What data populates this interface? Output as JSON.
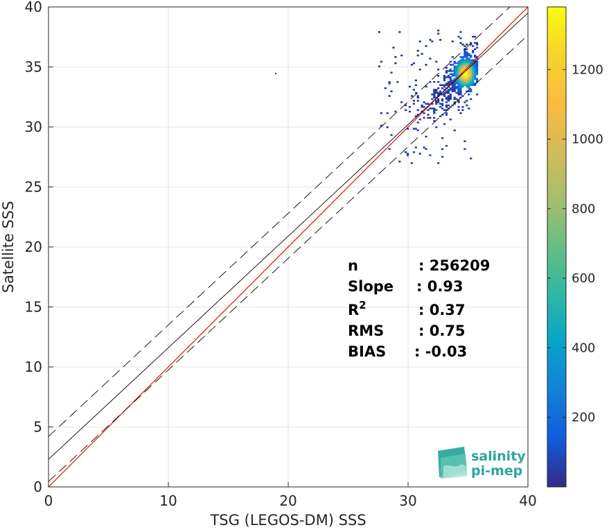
{
  "chart_data": {
    "type": "heatmap",
    "title": "",
    "xlabel": "TSG (LEGOS-DM) SSS",
    "ylabel": "Satellite SSS",
    "xlim": [
      0,
      40
    ],
    "ylim": [
      0,
      40
    ],
    "xticks": [
      "0",
      "10",
      "20",
      "30",
      "40"
    ],
    "yticks": [
      "0",
      "5",
      "10",
      "15",
      "20",
      "25",
      "30",
      "35",
      "40"
    ],
    "grid": true,
    "colorbar": {
      "range": [
        0,
        1380
      ],
      "ticks": [
        "200",
        "400",
        "600",
        "800",
        "1000",
        "1200"
      ],
      "colormap": "parula"
    },
    "density_core": {
      "center": [
        34.7,
        34.4
      ],
      "peak_count": 1380,
      "x_range": [
        27.5,
        35.8
      ],
      "y_range": [
        26.8,
        38.0
      ]
    },
    "outlier_point": [
      18.9,
      34.5
    ],
    "lines": [
      {
        "role": "identity",
        "slope": 1.0,
        "intercept": 0.0,
        "color": "#e8141c"
      },
      {
        "role": "regression",
        "slope": 0.93,
        "intercept": 2.3,
        "color": "#000000"
      },
      {
        "role": "regression-plus",
        "slope": 0.93,
        "intercept": 4.2,
        "color": "#000000",
        "dash": true
      },
      {
        "role": "regression-minus",
        "slope": 0.93,
        "intercept": 0.45,
        "color": "#000000",
        "dash": true
      }
    ],
    "stats": [
      {
        "label": "n",
        "value": ": 256209"
      },
      {
        "label": "Slope",
        "value": ": 0.93"
      },
      {
        "label": "R",
        "sup": "2",
        "value": ": 0.37"
      },
      {
        "label": "RMS",
        "value": ": 0.75"
      },
      {
        "label": "BIAS",
        "value": ": -0.03"
      }
    ]
  },
  "logo": {
    "line1": "salinity",
    "line2": "pi-mep"
  }
}
